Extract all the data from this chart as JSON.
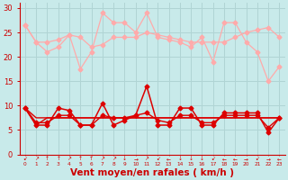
{
  "background_color": "#c8eaea",
  "grid_color": "#b0d4d4",
  "text_color": "#cc0000",
  "x": [
    0,
    1,
    2,
    3,
    4,
    5,
    6,
    7,
    8,
    9,
    10,
    11,
    12,
    13,
    14,
    15,
    16,
    17,
    18,
    19,
    20,
    21,
    22,
    23
  ],
  "line_pink1_color": "#ffaaaa",
  "line_pink1_y": [
    26.5,
    23,
    23,
    23.5,
    24.5,
    17.5,
    21,
    29,
    27,
    27,
    25,
    29,
    24,
    23.5,
    23,
    22,
    24,
    19,
    27,
    27,
    23,
    21,
    15,
    18
  ],
  "line_pink2_color": "#ffaaaa",
  "line_pink2_y": [
    26.5,
    23,
    21,
    22,
    24.5,
    24,
    22,
    22.5,
    24,
    24,
    24,
    25,
    24.5,
    24,
    23.5,
    23,
    23,
    23,
    23,
    24,
    25,
    25.5,
    26,
    24
  ],
  "line_red1_color": "#dd0000",
  "line_red1_y": [
    9.5,
    6,
    6,
    9.5,
    9,
    6,
    6,
    10.5,
    6,
    7,
    8,
    14,
    6,
    6,
    9.5,
    9.5,
    6,
    6,
    8.5,
    8.5,
    8.5,
    8.5,
    4.5,
    7.5
  ],
  "line_red2_color": "#dd0000",
  "line_red2_y": [
    9.5,
    6,
    7.5,
    7.5,
    7.5,
    7.5,
    7.5,
    7.5,
    7.5,
    7.5,
    7.5,
    7.5,
    7.5,
    7.5,
    7.5,
    7.5,
    7.5,
    7.5,
    7.5,
    7.5,
    7.5,
    7.5,
    7.5,
    7.5
  ],
  "line_red3_color": "#dd0000",
  "line_red3_y": [
    9.5,
    7.5,
    7.5,
    7.5,
    7.5,
    7.5,
    7.5,
    7.5,
    7.5,
    7.5,
    7.5,
    7.5,
    7.5,
    7.5,
    7.5,
    7.5,
    7.5,
    7.5,
    7.5,
    7.5,
    7.5,
    7.5,
    7.5,
    7.5
  ],
  "line_red4_color": "#dd0000",
  "line_red4_y": [
    9.5,
    6.5,
    6.5,
    8,
    8,
    6,
    6,
    8,
    7.5,
    7.5,
    8,
    8.5,
    7,
    6.5,
    8,
    8,
    6.5,
    6.5,
    8,
    8,
    8,
    8,
    5.5,
    7.5
  ],
  "ylim": [
    0,
    31
  ],
  "yticks": [
    0,
    5,
    10,
    15,
    20,
    25,
    30
  ],
  "xlabel": "Vent moyen/en rafales ( km/h )",
  "wind_arrows": [
    "↙",
    "↗",
    "↑",
    "↑",
    "↗",
    "↑",
    "↑",
    "↗",
    "↗",
    "↓",
    "→",
    "↗",
    "↙",
    "←",
    "↓",
    "↓",
    "↓",
    "↙",
    "←",
    "←",
    "→",
    "↙",
    "→",
    "←"
  ]
}
